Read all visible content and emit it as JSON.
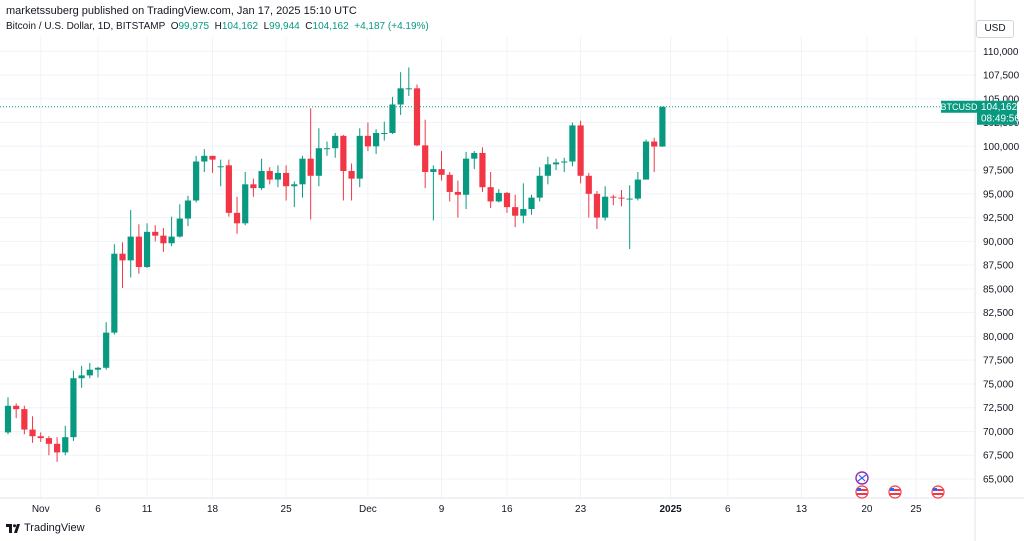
{
  "header": {
    "published_text": "marketssuberg published on TradingView.com, Jan 17, 2025 15:10 UTC"
  },
  "legend": {
    "symbol": "Bitcoin / U.S. Dollar, 1D, BITSTAMP",
    "o_label": "O",
    "o_value": "99,975",
    "h_label": "H",
    "h_value": "104,162",
    "l_label": "L",
    "l_value": "99,944",
    "c_label": "C",
    "c_value": "104,162",
    "change": "+4,187 (+4.19%)"
  },
  "currency_button": "USD",
  "price_badge": {
    "symbol": "BTCUSD",
    "price": "104,162",
    "countdown": "08:49:56"
  },
  "footer": {
    "brand": "TradingView"
  },
  "colors": {
    "up": "#089981",
    "down": "#f23645",
    "grid": "#f0f3fa",
    "last_price_line": "#089981"
  },
  "chart_data": {
    "type": "candlestick",
    "title": "Bitcoin / U.S. Dollar, 1D, BITSTAMP",
    "ylim": [
      63000,
      111500
    ],
    "y_ticks": [
      65000,
      67500,
      70000,
      72500,
      75000,
      77500,
      80000,
      82500,
      85000,
      87500,
      90000,
      92500,
      95000,
      97500,
      100000,
      102500,
      105000,
      107500,
      110000
    ],
    "y_tick_labels": [
      "65,000",
      "67,500",
      "70,000",
      "72,500",
      "75,000",
      "77,500",
      "80,000",
      "82,500",
      "85,000",
      "87,500",
      "90,000",
      "92,500",
      "95,000",
      "97,500",
      "100,000",
      "102,500",
      "105,000",
      "107,500",
      "110,000"
    ],
    "x_tick_labels": [
      "Nov",
      "6",
      "11",
      "18",
      "25",
      "Dec",
      "9",
      "16",
      "23",
      "2025",
      "6",
      "13",
      "20",
      "25"
    ],
    "x_tick_index": [
      4,
      11,
      17,
      25,
      34,
      44,
      53,
      61,
      70,
      81,
      88,
      97,
      105,
      111
    ],
    "bold_x_tick": "2025",
    "last_price": 104162,
    "candles": [
      {
        "date": "2024-10-29",
        "o": 69900,
        "h": 73600,
        "l": 69700,
        "c": 72700
      },
      {
        "date": "2024-10-30",
        "o": 72700,
        "h": 72950,
        "l": 71400,
        "c": 72350
      },
      {
        "date": "2024-10-31",
        "o": 72350,
        "h": 72700,
        "l": 69700,
        "c": 70200
      },
      {
        "date": "2024-11-01",
        "o": 70200,
        "h": 71600,
        "l": 68800,
        "c": 69500
      },
      {
        "date": "2024-11-02",
        "o": 69500,
        "h": 69900,
        "l": 68900,
        "c": 69300
      },
      {
        "date": "2024-11-03",
        "o": 69300,
        "h": 69500,
        "l": 67500,
        "c": 68700
      },
      {
        "date": "2024-11-04",
        "o": 68700,
        "h": 69400,
        "l": 66800,
        "c": 67800
      },
      {
        "date": "2024-11-05",
        "o": 67800,
        "h": 70600,
        "l": 67500,
        "c": 69400
      },
      {
        "date": "2024-11-06",
        "o": 69400,
        "h": 76400,
        "l": 69000,
        "c": 75600
      },
      {
        "date": "2024-11-07",
        "o": 75600,
        "h": 76900,
        "l": 74600,
        "c": 75900
      },
      {
        "date": "2024-11-08",
        "o": 75900,
        "h": 77200,
        "l": 75600,
        "c": 76500
      },
      {
        "date": "2024-11-09",
        "o": 76500,
        "h": 76800,
        "l": 75700,
        "c": 76700
      },
      {
        "date": "2024-11-10",
        "o": 76700,
        "h": 81500,
        "l": 76500,
        "c": 80400
      },
      {
        "date": "2024-11-11",
        "o": 80400,
        "h": 89700,
        "l": 80200,
        "c": 88700
      },
      {
        "date": "2024-11-12",
        "o": 88700,
        "h": 89900,
        "l": 85100,
        "c": 88000
      },
      {
        "date": "2024-11-13",
        "o": 88000,
        "h": 93300,
        "l": 86200,
        "c": 90500
      },
      {
        "date": "2024-11-14",
        "o": 90500,
        "h": 91800,
        "l": 86600,
        "c": 87300
      },
      {
        "date": "2024-11-15",
        "o": 87300,
        "h": 91900,
        "l": 87200,
        "c": 91000
      },
      {
        "date": "2024-11-16",
        "o": 91000,
        "h": 91700,
        "l": 90000,
        "c": 90600
      },
      {
        "date": "2024-11-17",
        "o": 90600,
        "h": 91400,
        "l": 88900,
        "c": 89800
      },
      {
        "date": "2024-11-18",
        "o": 89800,
        "h": 92600,
        "l": 89500,
        "c": 90500
      },
      {
        "date": "2024-11-19",
        "o": 90500,
        "h": 93900,
        "l": 90400,
        "c": 92400
      },
      {
        "date": "2024-11-20",
        "o": 92400,
        "h": 94800,
        "l": 91600,
        "c": 94300
      },
      {
        "date": "2024-11-21",
        "o": 94300,
        "h": 99000,
        "l": 94100,
        "c": 98400
      },
      {
        "date": "2024-11-22",
        "o": 98400,
        "h": 99700,
        "l": 97300,
        "c": 99000
      },
      {
        "date": "2024-11-23",
        "o": 99000,
        "h": 99000,
        "l": 97200,
        "c": 98600
      },
      {
        "date": "2024-11-24",
        "o": 97800,
        "h": 98600,
        "l": 95800,
        "c": 97900
      },
      {
        "date": "2024-11-25",
        "o": 98000,
        "h": 98600,
        "l": 92600,
        "c": 93000
      },
      {
        "date": "2024-11-26",
        "o": 93000,
        "h": 94700,
        "l": 90800,
        "c": 91900
      },
      {
        "date": "2024-11-27",
        "o": 91900,
        "h": 97300,
        "l": 91700,
        "c": 96000
      },
      {
        "date": "2024-11-28",
        "o": 96000,
        "h": 96600,
        "l": 94700,
        "c": 95600
      },
      {
        "date": "2024-11-29",
        "o": 95600,
        "h": 98700,
        "l": 95400,
        "c": 97400
      },
      {
        "date": "2024-11-30",
        "o": 97400,
        "h": 97800,
        "l": 96000,
        "c": 96500
      },
      {
        "date": "2024-12-01",
        "o": 96500,
        "h": 98000,
        "l": 95700,
        "c": 97200
      },
      {
        "date": "2024-12-02",
        "o": 97200,
        "h": 98000,
        "l": 94300,
        "c": 95800
      },
      {
        "date": "2024-12-03",
        "o": 95800,
        "h": 96300,
        "l": 93600,
        "c": 96000
      },
      {
        "date": "2024-12-04",
        "o": 96000,
        "h": 99000,
        "l": 94600,
        "c": 98700
      },
      {
        "date": "2024-12-05",
        "o": 98700,
        "h": 104000,
        "l": 92300,
        "c": 96900
      },
      {
        "date": "2024-12-06",
        "o": 96900,
        "h": 101900,
        "l": 95800,
        "c": 99800
      },
      {
        "date": "2024-12-07",
        "o": 99800,
        "h": 100500,
        "l": 99000,
        "c": 99800
      },
      {
        "date": "2024-12-08",
        "o": 99800,
        "h": 101400,
        "l": 98800,
        "c": 101100
      },
      {
        "date": "2024-12-09",
        "o": 101100,
        "h": 101200,
        "l": 94300,
        "c": 97400
      },
      {
        "date": "2024-12-10",
        "o": 97400,
        "h": 98200,
        "l": 94300,
        "c": 96600
      },
      {
        "date": "2024-12-11",
        "o": 96600,
        "h": 101900,
        "l": 95700,
        "c": 101100
      },
      {
        "date": "2024-12-12",
        "o": 101100,
        "h": 102500,
        "l": 99500,
        "c": 100000
      },
      {
        "date": "2024-12-13",
        "o": 100000,
        "h": 101800,
        "l": 99200,
        "c": 101400
      },
      {
        "date": "2024-12-14",
        "o": 101400,
        "h": 102600,
        "l": 100600,
        "c": 101400
      },
      {
        "date": "2024-12-15",
        "o": 101400,
        "h": 105200,
        "l": 101300,
        "c": 104400
      },
      {
        "date": "2024-12-16",
        "o": 104400,
        "h": 107800,
        "l": 103300,
        "c": 106100
      },
      {
        "date": "2024-12-17",
        "o": 106100,
        "h": 108300,
        "l": 105300,
        "c": 106100
      },
      {
        "date": "2024-12-18",
        "o": 106100,
        "h": 106500,
        "l": 100000,
        "c": 100100
      },
      {
        "date": "2024-12-19",
        "o": 100100,
        "h": 102800,
        "l": 95600,
        "c": 97300
      },
      {
        "date": "2024-12-20",
        "o": 97300,
        "h": 98000,
        "l": 92200,
        "c": 97600
      },
      {
        "date": "2024-12-21",
        "o": 97600,
        "h": 99500,
        "l": 96400,
        "c": 97000
      },
      {
        "date": "2024-12-22",
        "o": 97000,
        "h": 97300,
        "l": 94200,
        "c": 95200
      },
      {
        "date": "2024-12-23",
        "o": 95200,
        "h": 96400,
        "l": 92500,
        "c": 94900
      },
      {
        "date": "2024-12-24",
        "o": 94900,
        "h": 99400,
        "l": 93400,
        "c": 98700
      },
      {
        "date": "2024-12-25",
        "o": 98700,
        "h": 99500,
        "l": 97600,
        "c": 99300
      },
      {
        "date": "2024-12-26",
        "o": 99300,
        "h": 99900,
        "l": 95200,
        "c": 95700
      },
      {
        "date": "2024-12-27",
        "o": 95700,
        "h": 97300,
        "l": 93500,
        "c": 94200
      },
      {
        "date": "2024-12-28",
        "o": 94200,
        "h": 95500,
        "l": 94100,
        "c": 95100
      },
      {
        "date": "2024-12-29",
        "o": 95100,
        "h": 95200,
        "l": 93000,
        "c": 93600
      },
      {
        "date": "2024-12-30",
        "o": 93600,
        "h": 94900,
        "l": 91500,
        "c": 92700
      },
      {
        "date": "2024-12-31",
        "o": 92700,
        "h": 96100,
        "l": 91900,
        "c": 93400
      },
      {
        "date": "2025-01-01",
        "o": 93400,
        "h": 94900,
        "l": 92800,
        "c": 94600
      },
      {
        "date": "2025-01-02",
        "o": 94600,
        "h": 97800,
        "l": 94200,
        "c": 96900
      },
      {
        "date": "2025-01-03",
        "o": 96900,
        "h": 98900,
        "l": 96000,
        "c": 98100
      },
      {
        "date": "2025-01-04",
        "o": 98100,
        "h": 98700,
        "l": 97500,
        "c": 98300
      },
      {
        "date": "2025-01-05",
        "o": 98300,
        "h": 98800,
        "l": 97300,
        "c": 98400
      },
      {
        "date": "2025-01-06",
        "o": 98400,
        "h": 102500,
        "l": 97900,
        "c": 102200
      },
      {
        "date": "2025-01-07",
        "o": 102200,
        "h": 102700,
        "l": 96100,
        "c": 96900
      },
      {
        "date": "2025-01-08",
        "o": 96900,
        "h": 97200,
        "l": 92500,
        "c": 95000
      },
      {
        "date": "2025-01-09",
        "o": 95000,
        "h": 95300,
        "l": 91300,
        "c": 92500
      },
      {
        "date": "2025-01-10",
        "o": 92500,
        "h": 95800,
        "l": 92200,
        "c": 94700
      },
      {
        "date": "2025-01-11",
        "o": 94700,
        "h": 94900,
        "l": 93800,
        "c": 94600
      },
      {
        "date": "2025-01-12",
        "o": 94600,
        "h": 95400,
        "l": 93700,
        "c": 94500
      },
      {
        "date": "2025-01-13",
        "o": 94500,
        "h": 95900,
        "l": 89200,
        "c": 94500
      },
      {
        "date": "2025-01-14",
        "o": 94500,
        "h": 97300,
        "l": 94300,
        "c": 96500
      },
      {
        "date": "2025-01-15",
        "o": 96500,
        "h": 100700,
        "l": 96500,
        "c": 100500
      },
      {
        "date": "2025-01-16",
        "o": 100500,
        "h": 100900,
        "l": 97300,
        "c": 99975
      },
      {
        "date": "2025-01-17",
        "o": 99975,
        "h": 104162,
        "l": 99944,
        "c": 104162
      }
    ]
  }
}
